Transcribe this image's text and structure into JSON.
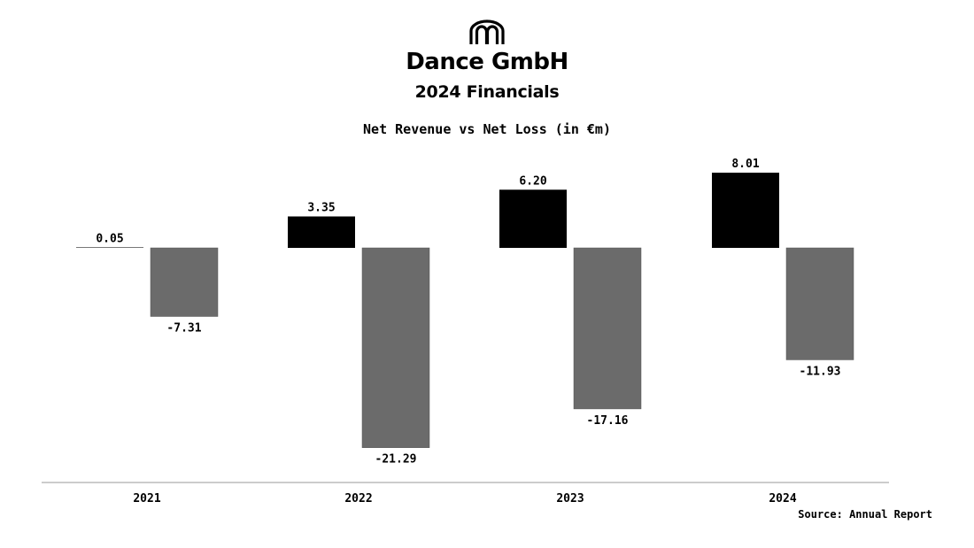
{
  "header": {
    "company": "Dance GmbH",
    "subtitle": "2024 Financials",
    "logo_icon": "arches-logo-icon"
  },
  "source": "Source: Annual Report",
  "chart_data": {
    "type": "bar",
    "title": "Net Revenue vs Net Loss (in €m)",
    "categories": [
      "2021",
      "2022",
      "2023",
      "2024"
    ],
    "series": [
      {
        "values": [
          0.05,
          3.35,
          6.2,
          8.01
        ],
        "labels": [
          "0.05",
          "3.35",
          "6.20",
          "8.01"
        ],
        "color": "#000000"
      },
      {
        "values": [
          -7.31,
          -21.29,
          -17.16,
          -11.93
        ],
        "labels": [
          "-7.31",
          "-21.29",
          "-17.16",
          "-11.93"
        ],
        "color": "#6b6b6b"
      }
    ],
    "xlabel": "",
    "ylabel": "",
    "ylim": [
      -24.5,
      10
    ],
    "grid": false,
    "legend": "none",
    "axis_color": "#999999"
  }
}
